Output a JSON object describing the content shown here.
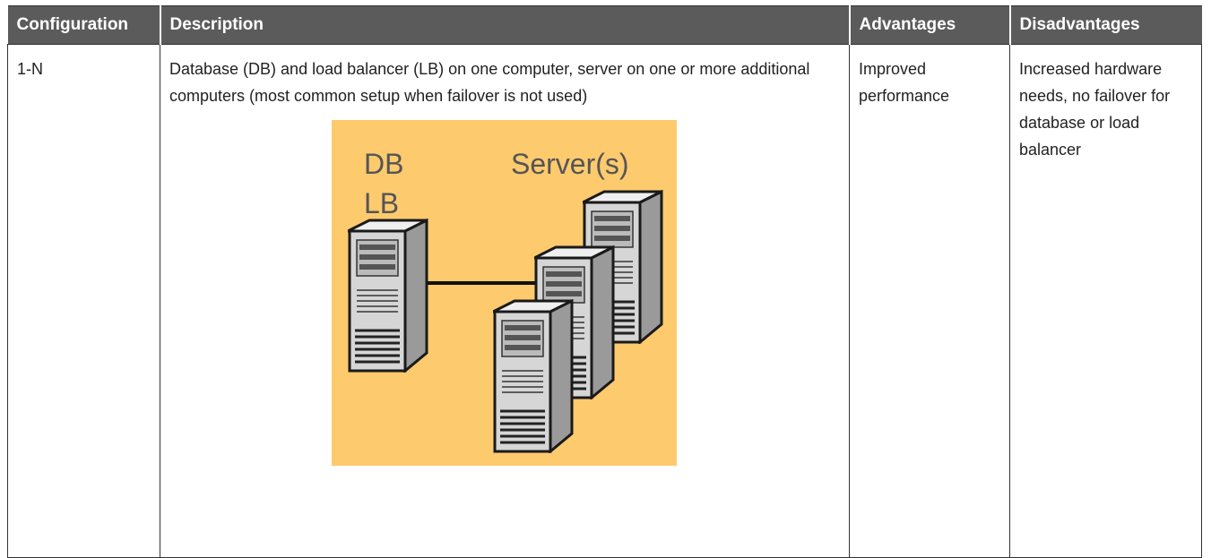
{
  "table": {
    "header": [
      "Configuration",
      "Description",
      "Advantages",
      "Disadvantages"
    ],
    "rows": [
      [
        "1-N",
        "Database (DB) and load balancer (LB) on one computer, server on one or more additional computers (most common setup when failover is not used)",
        "Improved performance",
        "Increased hardware needs, no failover for database or load balancer"
      ]
    ]
  },
  "figure": {
    "labels": [
      "DB",
      "LB",
      "Server(s)"
    ]
  }
}
